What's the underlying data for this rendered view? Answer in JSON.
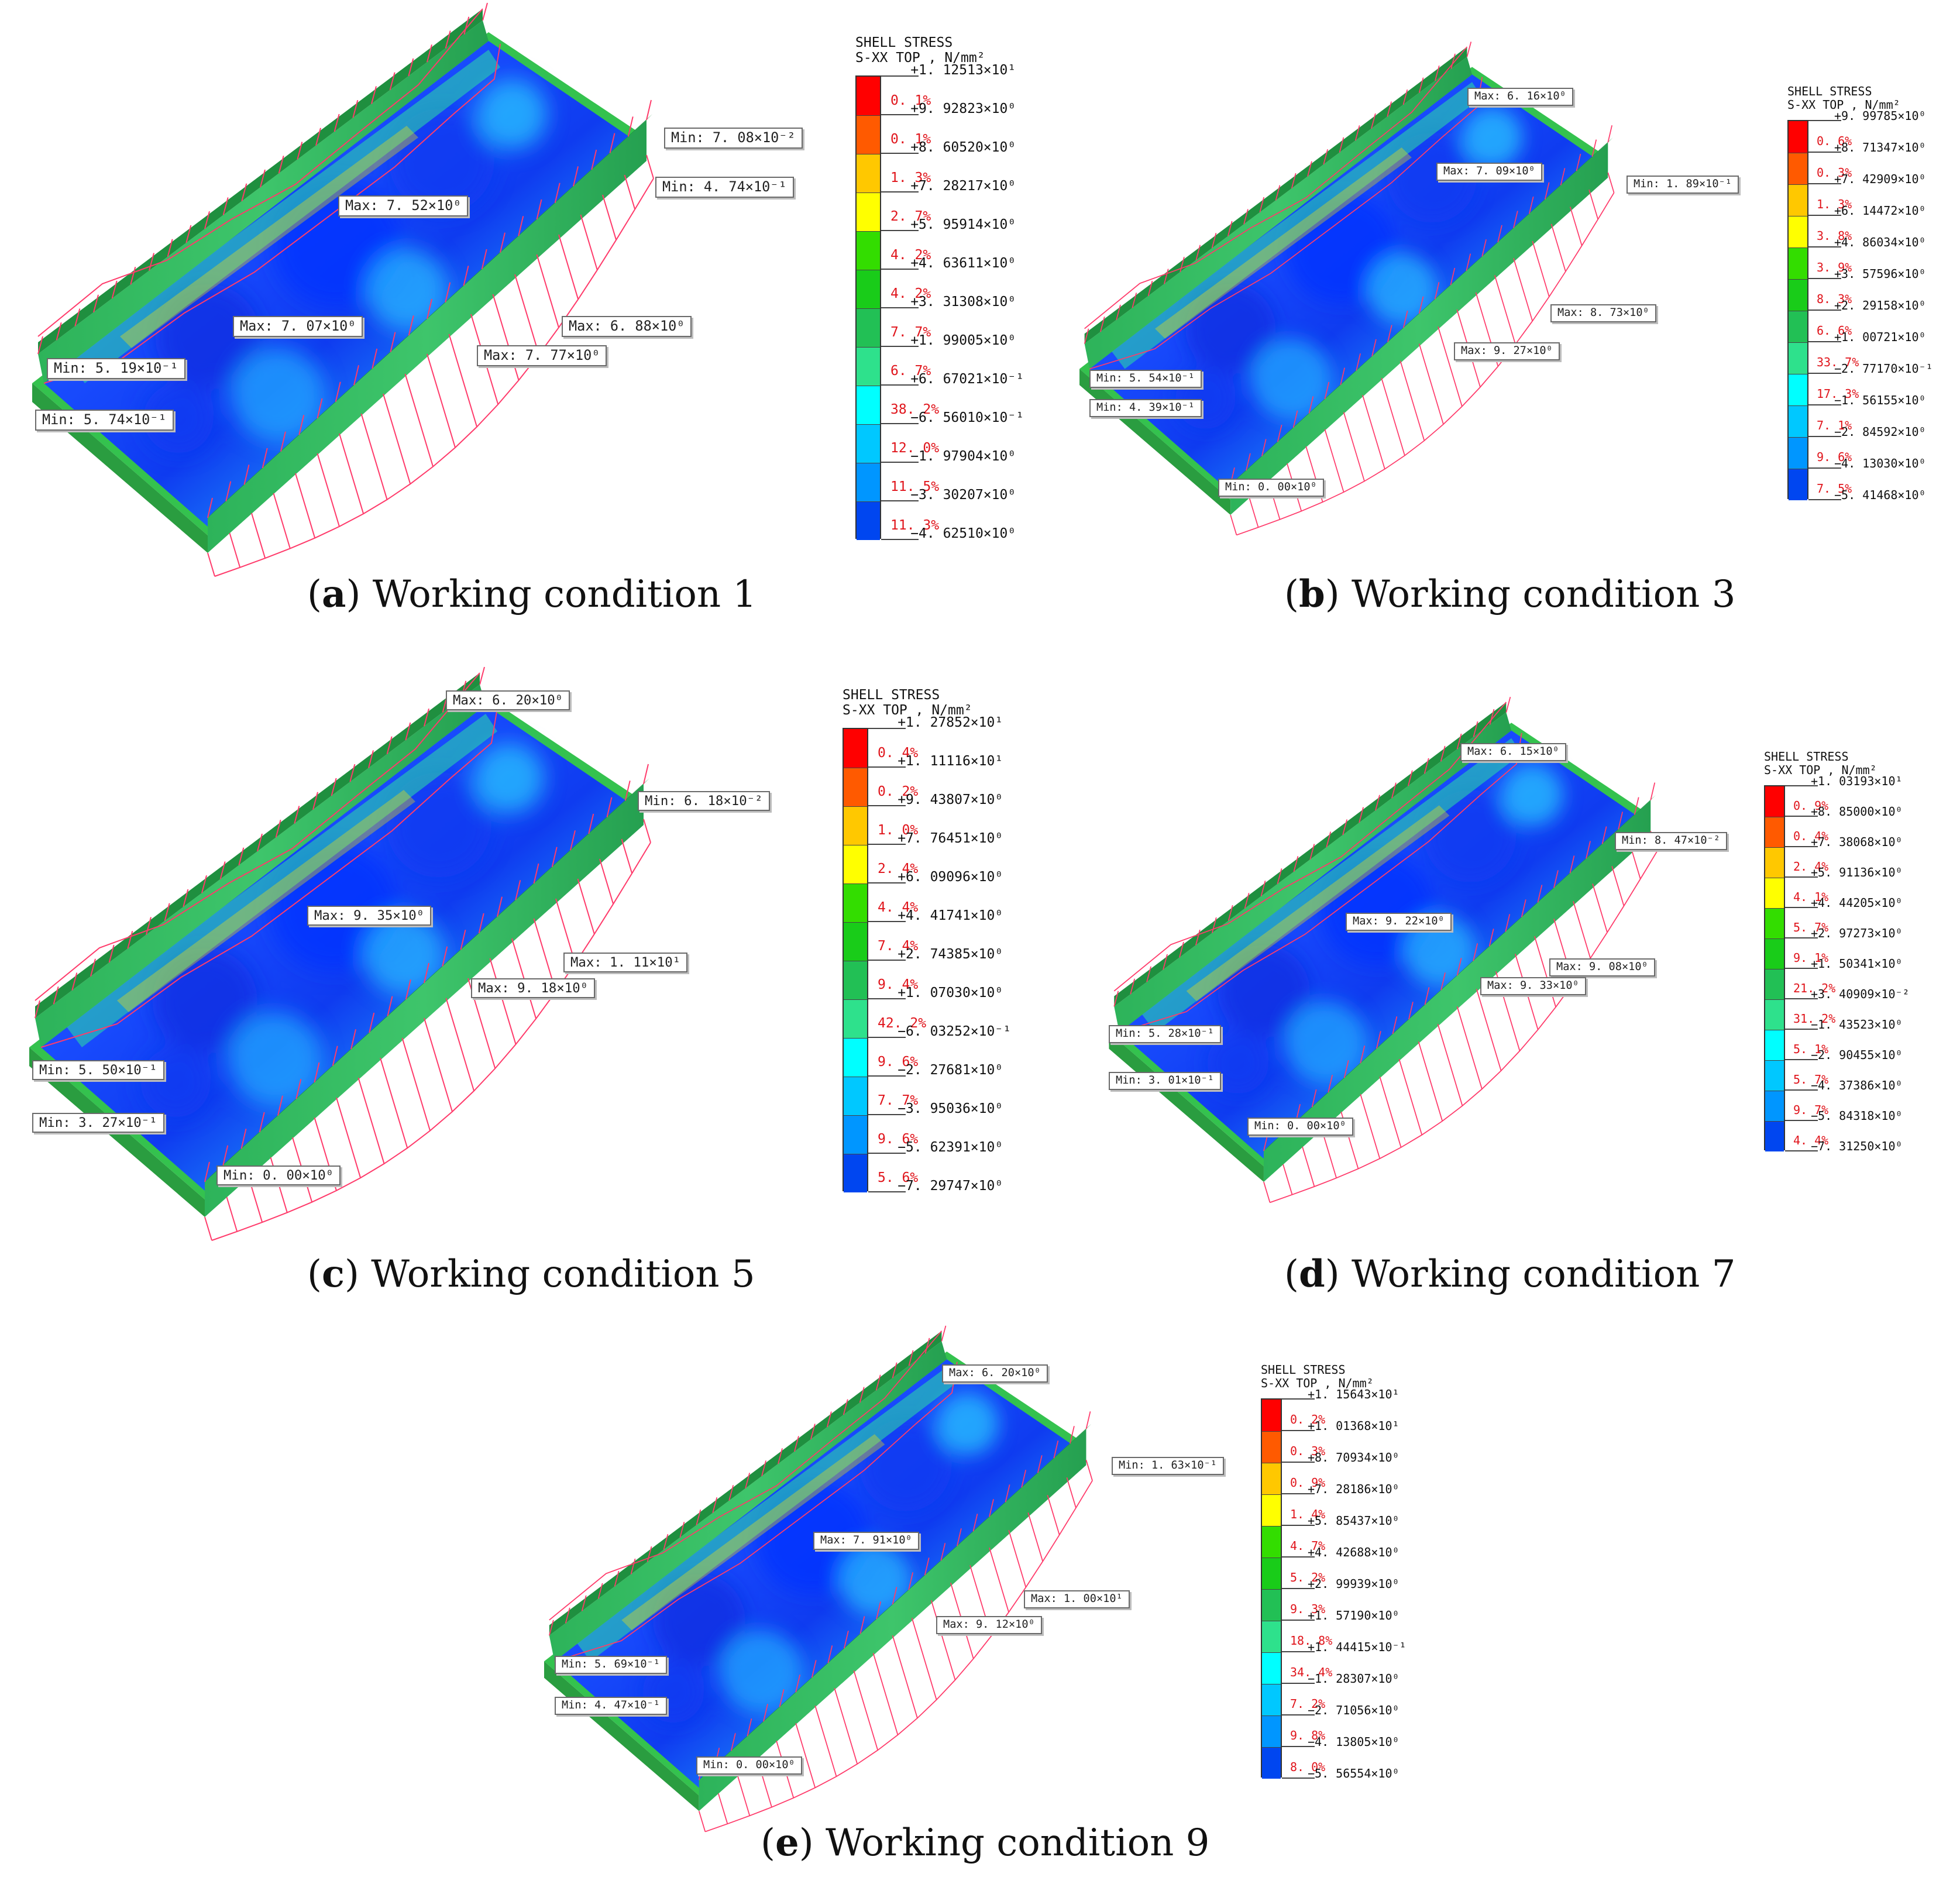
{
  "colors": [
    "#ff0000",
    "#ff5a00",
    "#ffc800",
    "#ffff00",
    "#33dd00",
    "#19cc19",
    "#22c055",
    "#2ee18c",
    "#00ffff",
    "#00c8ff",
    "#0096ff",
    "#0046f0",
    "#0000ff"
  ],
  "panels": [
    {
      "caption": {
        "letter": "a",
        "text": "Working condition 1"
      },
      "legend": {
        "title1": "SHELL STRESS",
        "title2": "S-XX TOP , N/mm²",
        "values": [
          "+1. 12513×10¹",
          "+9. 92823×10⁰",
          "+8. 60520×10⁰",
          "+7. 28217×10⁰",
          "+5. 95914×10⁰",
          "+4. 63611×10⁰",
          "+3. 31308×10⁰",
          "+1. 99005×10⁰",
          "+6. 67021×10⁻¹",
          "−6. 56010×10⁻¹",
          "−1. 97904×10⁰",
          "−3. 30207×10⁰",
          "−4. 62510×10⁰"
        ],
        "percents": [
          "0. 1%",
          "0. 1%",
          "1. 3%",
          "2. 7%",
          "4. 2%",
          "4. 2%",
          "7. 7%",
          "6. 7%",
          "38. 2%",
          "12. 0%",
          "11. 5%",
          "11. 3%"
        ]
      },
      "callouts": [
        {
          "name": "min-callout",
          "text": "Min: 7. 08×10⁻²"
        },
        {
          "name": "min-callout",
          "text": "Min: 4. 74×10⁻¹"
        },
        {
          "name": "max-callout",
          "text": "Max: 7. 52×10⁰"
        },
        {
          "name": "max-callout",
          "text": "Max: 7. 07×10⁰"
        },
        {
          "name": "max-callout",
          "text": "Max: 6. 88×10⁰"
        },
        {
          "name": "max-callout",
          "text": "Max: 7. 77×10⁰"
        },
        {
          "name": "min-callout",
          "text": "Min: 5. 19×10⁻¹"
        },
        {
          "name": "min-callout",
          "text": "Min: 5. 74×10⁻¹"
        }
      ]
    },
    {
      "caption": {
        "letter": "b",
        "text": "Working condition 3"
      },
      "legend": {
        "title1": "SHELL STRESS",
        "title2": "S-XX TOP , N/mm²",
        "values": [
          "+9. 99785×10⁰",
          "+8. 71347×10⁰",
          "+7. 42909×10⁰",
          "+6. 14472×10⁰",
          "+4. 86034×10⁰",
          "+3. 57596×10⁰",
          "+2. 29158×10⁰",
          "+1. 00721×10⁰",
          "−2. 77170×10⁻¹",
          "−1. 56155×10⁰",
          "−2. 84592×10⁰",
          "−4. 13030×10⁰",
          "−5. 41468×10⁰"
        ],
        "percents": [
          "0. 6%",
          "0. 3%",
          "1. 3%",
          "3. 8%",
          "3. 9%",
          "8. 3%",
          "6. 6%",
          "33. 7%",
          "17. 3%",
          "7. 1%",
          "9. 6%",
          "7. 5%"
        ]
      },
      "callouts": [
        {
          "name": "max-callout",
          "text": "Max: 6. 16×10⁰"
        },
        {
          "name": "max-callout",
          "text": "Max: 7. 09×10⁰"
        },
        {
          "name": "min-callout",
          "text": "Min: 1. 89×10⁻¹"
        },
        {
          "name": "max-callout",
          "text": "Max: 8. 73×10⁰"
        },
        {
          "name": "max-callout",
          "text": "Max: 9. 27×10⁰"
        },
        {
          "name": "min-callout",
          "text": "Min: 5. 54×10⁻¹"
        },
        {
          "name": "min-callout",
          "text": "Min: 4. 39×10⁻¹"
        },
        {
          "name": "min-callout",
          "text": "Min: 0. 00×10⁰"
        }
      ]
    },
    {
      "caption": {
        "letter": "c",
        "text": "Working condition 5"
      },
      "legend": {
        "title1": "SHELL STRESS",
        "title2": "S-XX TOP , N/mm²",
        "values": [
          "+1. 27852×10¹",
          "+1. 11116×10¹",
          "+9. 43807×10⁰",
          "+7. 76451×10⁰",
          "+6. 09096×10⁰",
          "+4. 41741×10⁰",
          "+2. 74385×10⁰",
          "+1. 07030×10⁰",
          "−6. 03252×10⁻¹",
          "−2. 27681×10⁰",
          "−3. 95036×10⁰",
          "−5. 62391×10⁰",
          "−7. 29747×10⁰"
        ],
        "percents": [
          "0. 4%",
          "0. 2%",
          "1. 0%",
          "2. 4%",
          "4. 4%",
          "7. 4%",
          "9. 4%",
          "42. 2%",
          "9. 6%",
          "7. 7%",
          "9. 6%",
          "5. 6%"
        ]
      },
      "callouts": [
        {
          "name": "max-callout",
          "text": "Max: 6. 20×10⁰"
        },
        {
          "name": "min-callout",
          "text": "Min: 6. 18×10⁻²"
        },
        {
          "name": "max-callout",
          "text": "Max: 9. 35×10⁰"
        },
        {
          "name": "max-callout",
          "text": "Max: 1. 11×10¹"
        },
        {
          "name": "max-callout",
          "text": "Max: 9. 18×10⁰"
        },
        {
          "name": "min-callout",
          "text": "Min: 5. 50×10⁻¹"
        },
        {
          "name": "min-callout",
          "text": "Min: 3. 27×10⁻¹"
        },
        {
          "name": "min-callout",
          "text": "Min: 0. 00×10⁰"
        }
      ]
    },
    {
      "caption": {
        "letter": "d",
        "text": "Working condition 7"
      },
      "legend": {
        "title1": "SHELL STRESS",
        "title2": "S-XX TOP , N/mm²",
        "values": [
          "+1. 03193×10¹",
          "+8. 85000×10⁰",
          "+7. 38068×10⁰",
          "+5. 91136×10⁰",
          "+4. 44205×10⁰",
          "+2. 97273×10⁰",
          "+1. 50341×10⁰",
          "+3. 40909×10⁻²",
          "−1. 43523×10⁰",
          "−2. 90455×10⁰",
          "−4. 37386×10⁰",
          "−5. 84318×10⁰",
          "−7. 31250×10⁰"
        ],
        "percents": [
          "0. 9%",
          "0. 4%",
          "2. 4%",
          "4. 1%",
          "5. 7%",
          "9. 1%",
          "21. 2%",
          "31. 2%",
          "5. 1%",
          "5. 7%",
          "9. 7%",
          "4. 4%"
        ]
      },
      "callouts": [
        {
          "name": "max-callout",
          "text": "Max: 6. 15×10⁰"
        },
        {
          "name": "min-callout",
          "text": "Min: 8. 47×10⁻²"
        },
        {
          "name": "max-callout",
          "text": "Max: 9. 22×10⁰"
        },
        {
          "name": "max-callout",
          "text": "Max: 9. 08×10⁰"
        },
        {
          "name": "max-callout",
          "text": "Max: 9. 33×10⁰"
        },
        {
          "name": "min-callout",
          "text": "Min: 5. 28×10⁻¹"
        },
        {
          "name": "min-callout",
          "text": "Min: 3. 01×10⁻¹"
        },
        {
          "name": "min-callout",
          "text": "Min: 0. 00×10⁰"
        }
      ]
    },
    {
      "caption": {
        "letter": "e",
        "text": "Working condition 9"
      },
      "legend": {
        "title1": "SHELL STRESS",
        "title2": "S-XX TOP , N/mm²",
        "values": [
          "+1. 15643×10¹",
          "+1. 01368×10¹",
          "+8. 70934×10⁰",
          "+7. 28186×10⁰",
          "+5. 85437×10⁰",
          "+4. 42688×10⁰",
          "+2. 99939×10⁰",
          "+1. 57190×10⁰",
          "+1. 44415×10⁻¹",
          "−1. 28307×10⁰",
          "−2. 71056×10⁰",
          "−4. 13805×10⁰",
          "−5. 56554×10⁰"
        ],
        "percents": [
          "0. 2%",
          "0. 3%",
          "0. 9%",
          "1. 4%",
          "4. 7%",
          "5. 2%",
          "9. 3%",
          "18. 8%",
          "34. 4%",
          "7. 2%",
          "9. 8%",
          "8. 0%"
        ]
      },
      "callouts": [
        {
          "name": "max-callout",
          "text": "Max: 6. 20×10⁰"
        },
        {
          "name": "min-callout",
          "text": "Min: 1. 63×10⁻¹"
        },
        {
          "name": "max-callout",
          "text": "Max: 7. 91×10⁰"
        },
        {
          "name": "max-callout",
          "text": "Max: 1. 00×10¹"
        },
        {
          "name": "max-callout",
          "text": "Max: 9. 12×10⁰"
        },
        {
          "name": "min-callout",
          "text": "Min: 5. 69×10⁻¹"
        },
        {
          "name": "min-callout",
          "text": "Min: 4. 47×10⁻¹"
        },
        {
          "name": "min-callout",
          "text": "Min: 0. 00×10⁰"
        }
      ]
    }
  ]
}
